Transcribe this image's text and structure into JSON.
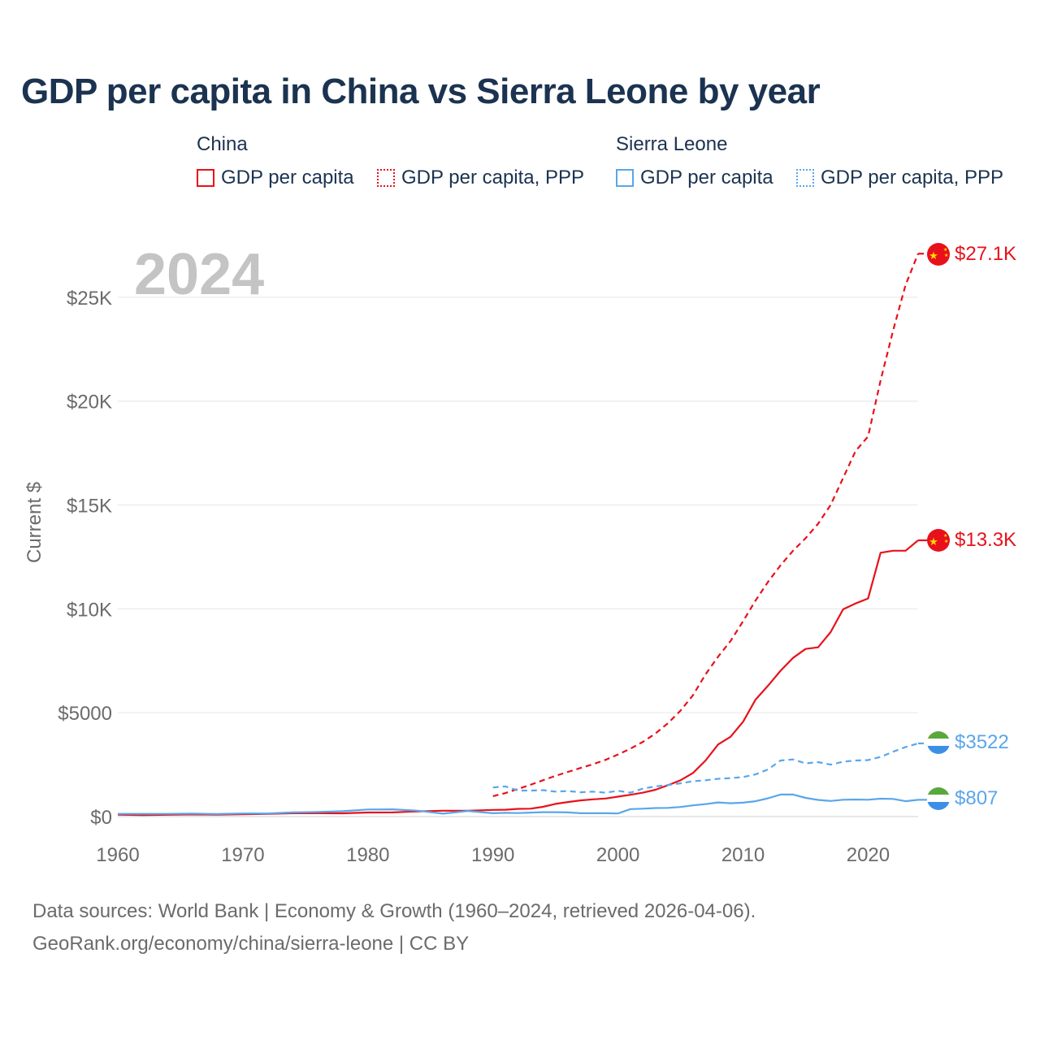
{
  "title": "GDP per capita in China vs Sierra Leone by year",
  "legend": {
    "groups": [
      {
        "name": "China",
        "items": [
          {
            "label": "GDP per capita",
            "style": "solid",
            "color": "#e8111b"
          },
          {
            "label": "GDP per capita, PPP",
            "style": "dotted",
            "color": "#e8111b"
          }
        ]
      },
      {
        "name": "Sierra Leone",
        "items": [
          {
            "label": "GDP per capita",
            "style": "solid",
            "color": "#5aa6ea"
          },
          {
            "label": "GDP per capita, PPP",
            "style": "dotted",
            "color": "#5aa6ea"
          }
        ]
      }
    ]
  },
  "footer": {
    "line1": "Data sources: World Bank | Economy & Growth (1960–2024, retrieved 2026-04-06).",
    "line2": "GeoRank.org/economy/china/sierra-leone | CC BY"
  },
  "chart_data": {
    "type": "line",
    "year_watermark": "2024",
    "ylabel": "Current $",
    "xlabel": "",
    "xlim": [
      1960,
      2024
    ],
    "ylim": [
      0,
      27500
    ],
    "xticks": [
      1960,
      1970,
      1980,
      1990,
      2000,
      2010,
      2020
    ],
    "yticks": [
      {
        "value": 0,
        "label": "$0"
      },
      {
        "value": 5000,
        "label": "$5000"
      },
      {
        "value": 10000,
        "label": "$10K"
      },
      {
        "value": 15000,
        "label": "$15K"
      },
      {
        "value": 20000,
        "label": "$20K"
      },
      {
        "value": 25000,
        "label": "$25K"
      }
    ],
    "series": [
      {
        "name": "China GDP per capita",
        "country": "China",
        "color": "#e8111b",
        "dashed": false,
        "end_label": "$13.3K",
        "x": [
          1960,
          1962,
          1964,
          1966,
          1968,
          1970,
          1972,
          1974,
          1976,
          1978,
          1980,
          1982,
          1984,
          1986,
          1988,
          1990,
          1991,
          1992,
          1993,
          1994,
          1995,
          1996,
          1997,
          1998,
          1999,
          2000,
          2001,
          2002,
          2003,
          2004,
          2005,
          2006,
          2007,
          2008,
          2009,
          2010,
          2011,
          2012,
          2013,
          2014,
          2015,
          2016,
          2017,
          2018,
          2019,
          2020,
          2021,
          2022,
          2023,
          2024
        ],
        "y": [
          90,
          70,
          85,
          100,
          90,
          110,
          130,
          160,
          160,
          155,
          195,
          200,
          250,
          280,
          280,
          320,
          330,
          370,
          380,
          470,
          610,
          700,
          780,
          830,
          870,
          960,
          1050,
          1150,
          1290,
          1510,
          1750,
          2100,
          2700,
          3470,
          3840,
          4560,
          5630,
          6300,
          7020,
          7640,
          8070,
          8150,
          8880,
          9980,
          10260,
          10500,
          12700,
          12800,
          12800,
          13300
        ]
      },
      {
        "name": "China GDP per capita, PPP",
        "country": "China",
        "color": "#e8111b",
        "dashed": true,
        "end_label": "$27.1K",
        "x": [
          1990,
          1991,
          1992,
          1993,
          1994,
          1995,
          1996,
          1997,
          1998,
          1999,
          2000,
          2001,
          2002,
          2003,
          2004,
          2005,
          2006,
          2007,
          2008,
          2009,
          2010,
          2011,
          2012,
          2013,
          2014,
          2015,
          2016,
          2017,
          2018,
          2019,
          2020,
          2021,
          2022,
          2023,
          2024
        ],
        "y": [
          980,
          1130,
          1330,
          1530,
          1750,
          1960,
          2150,
          2340,
          2520,
          2730,
          2990,
          3270,
          3600,
          4000,
          4500,
          5100,
          5850,
          6850,
          7700,
          8450,
          9400,
          10400,
          11300,
          12100,
          12800,
          13400,
          14100,
          15000,
          16300,
          17600,
          18300,
          21000,
          23400,
          25600,
          27100
        ]
      },
      {
        "name": "Sierra Leone GDP per capita",
        "country": "Sierra Leone",
        "color": "#5aa6ea",
        "dashed": false,
        "end_label": "$807",
        "x": [
          1960,
          1962,
          1964,
          1966,
          1968,
          1970,
          1972,
          1974,
          1976,
          1978,
          1980,
          1982,
          1984,
          1986,
          1988,
          1990,
          1991,
          1992,
          1993,
          1994,
          1995,
          1996,
          1997,
          1998,
          1999,
          2000,
          2001,
          2002,
          2003,
          2004,
          2005,
          2006,
          2007,
          2008,
          2009,
          2010,
          2011,
          2012,
          2013,
          2014,
          2015,
          2016,
          2017,
          2018,
          2019,
          2020,
          2021,
          2022,
          2023,
          2024
        ],
        "y": [
          130,
          130,
          130,
          140,
          120,
          150,
          150,
          200,
          220,
          260,
          340,
          350,
          280,
          140,
          270,
          160,
          180,
          170,
          190,
          210,
          210,
          200,
          160,
          160,
          160,
          150,
          360,
          380,
          410,
          420,
          460,
          540,
          600,
          680,
          640,
          670,
          740,
          880,
          1060,
          1060,
          900,
          800,
          750,
          810,
          820,
          810,
          860,
          850,
          740,
          807
        ]
      },
      {
        "name": "Sierra Leone GDP per capita, PPP",
        "country": "Sierra Leone",
        "color": "#5aa6ea",
        "dashed": true,
        "end_label": "$3522",
        "x": [
          1990,
          1991,
          1992,
          1993,
          1994,
          1995,
          1996,
          1997,
          1998,
          1999,
          2000,
          2001,
          2002,
          2003,
          2004,
          2005,
          2006,
          2007,
          2008,
          2009,
          2010,
          2011,
          2012,
          2013,
          2014,
          2015,
          2016,
          2017,
          2018,
          2019,
          2020,
          2021,
          2022,
          2023,
          2024
        ],
        "y": [
          1400,
          1450,
          1250,
          1250,
          1270,
          1200,
          1230,
          1170,
          1200,
          1150,
          1240,
          1150,
          1350,
          1450,
          1520,
          1600,
          1700,
          1750,
          1820,
          1850,
          1900,
          2030,
          2270,
          2700,
          2750,
          2560,
          2620,
          2500,
          2640,
          2700,
          2720,
          2870,
          3120,
          3350,
          3522
        ]
      }
    ]
  }
}
